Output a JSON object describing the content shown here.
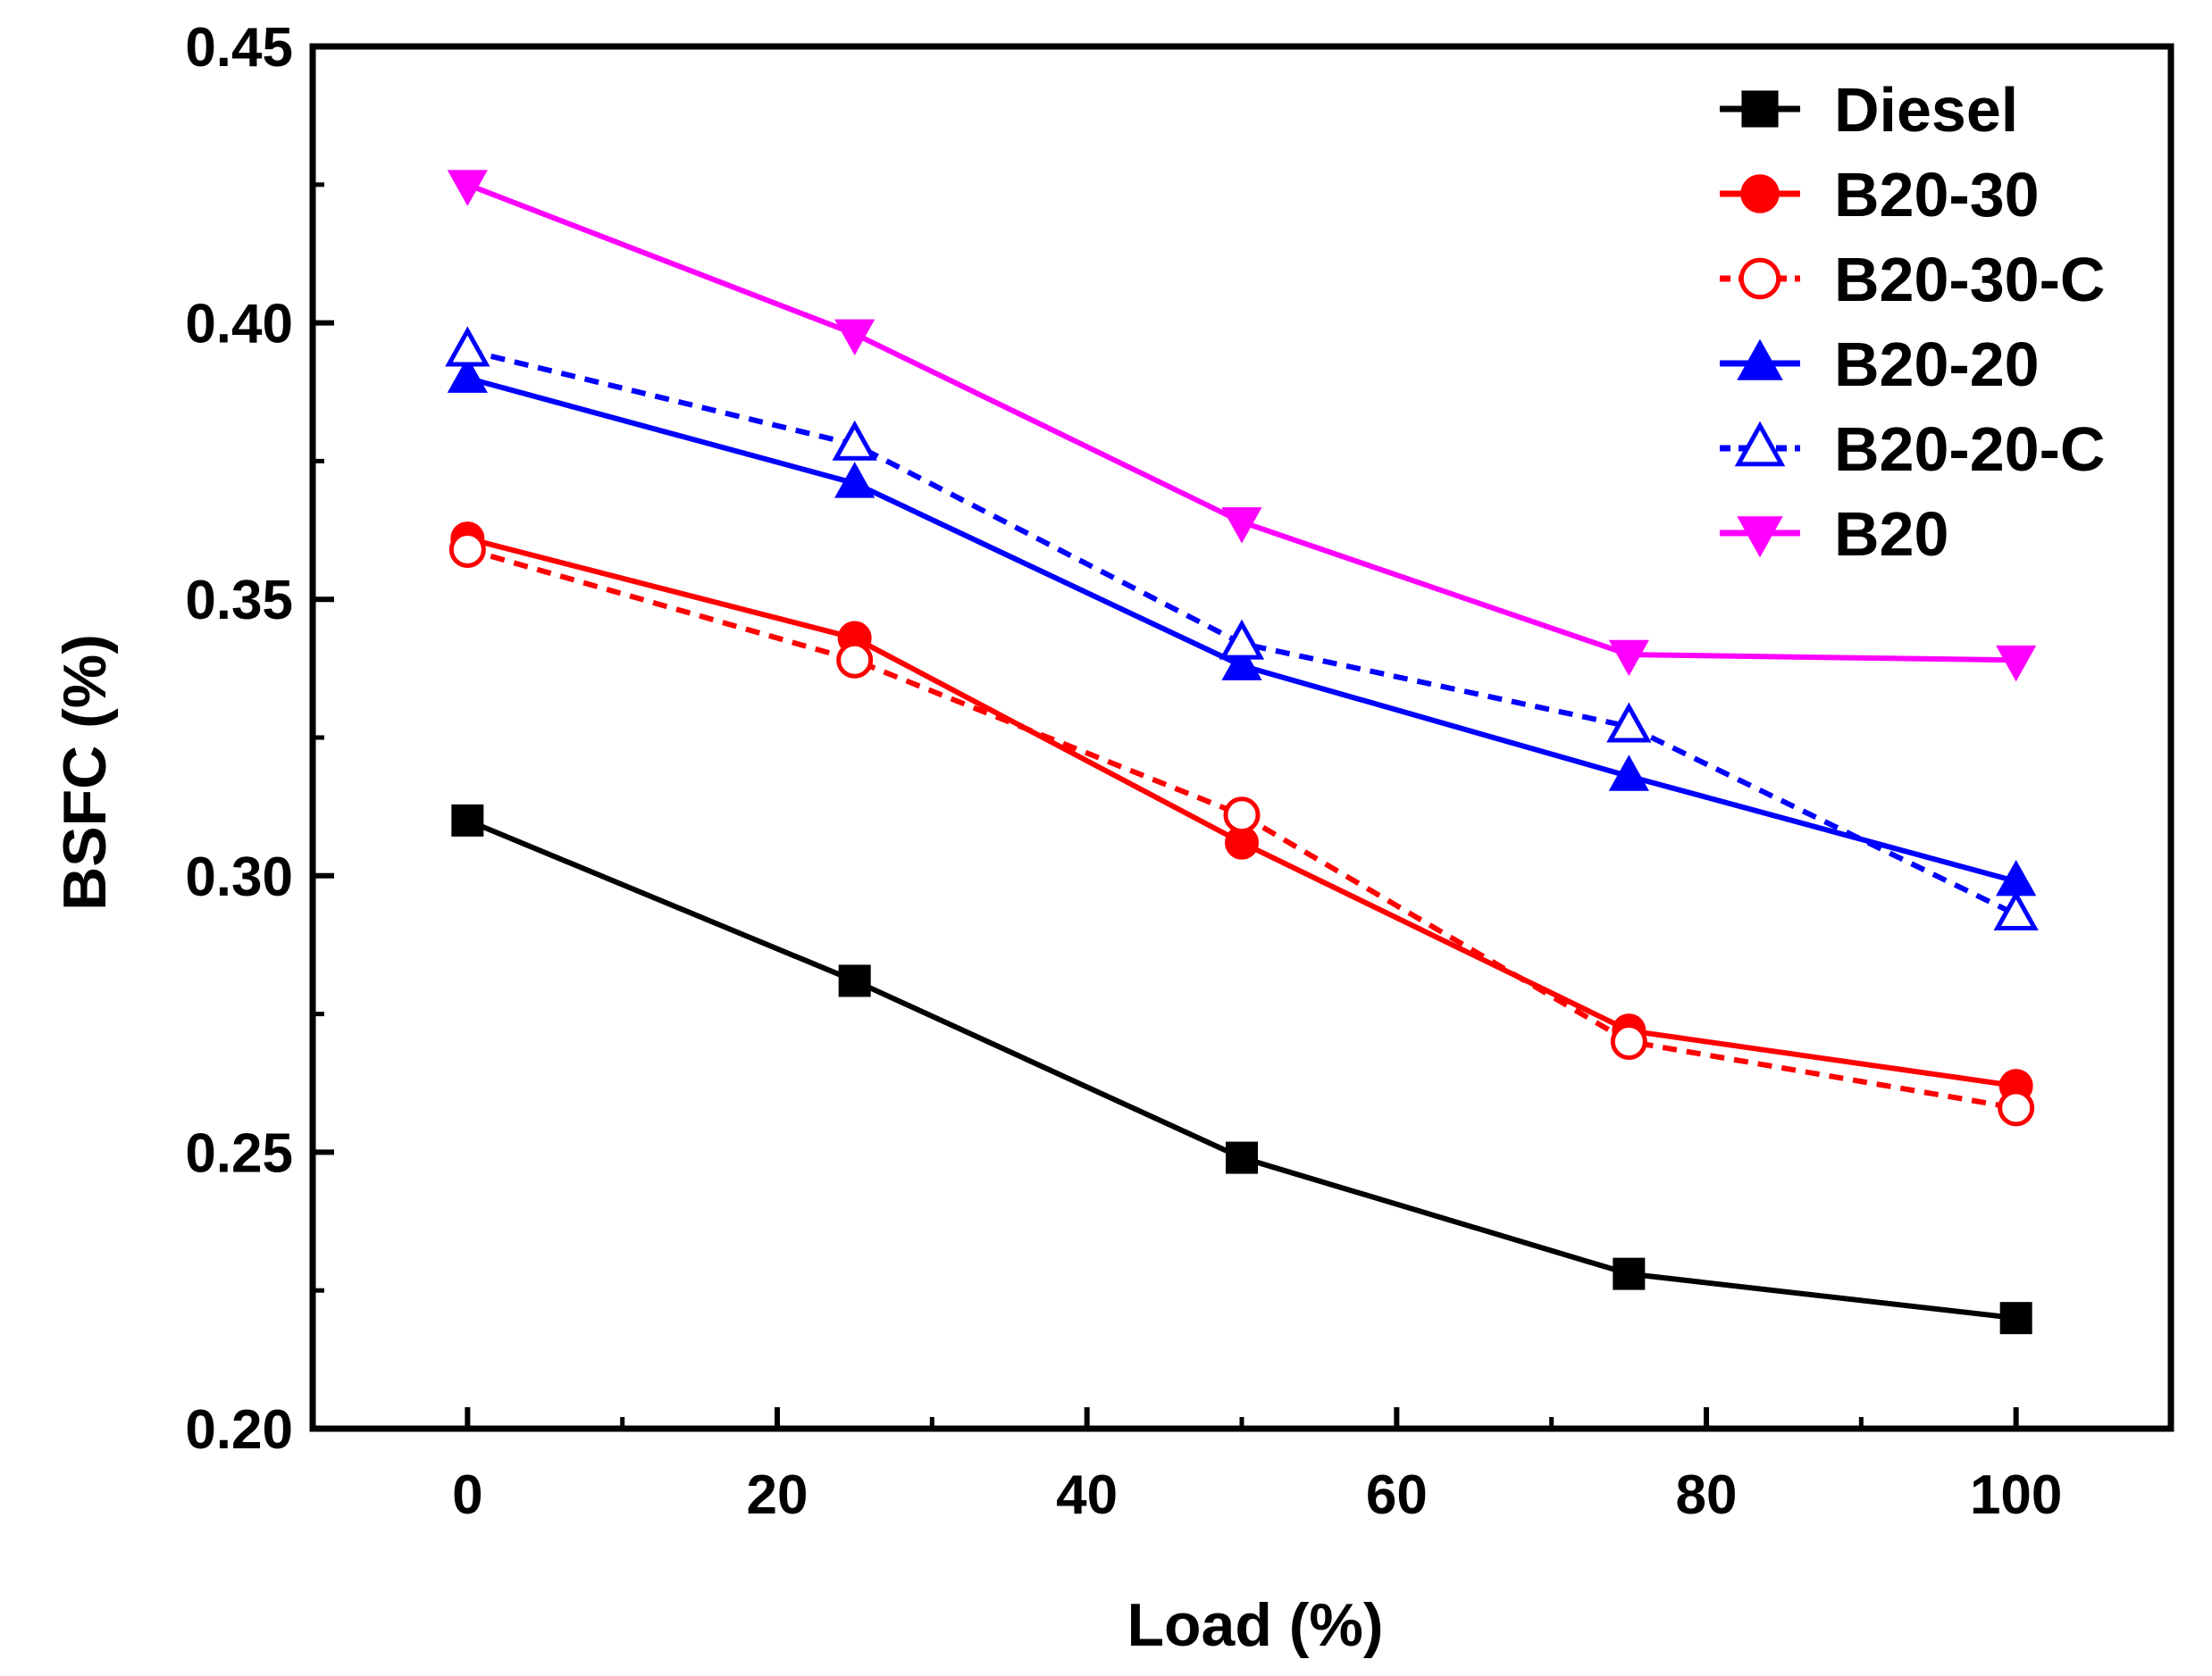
{
  "chart_data": {
    "type": "line",
    "xlabel": "Load (%)",
    "ylabel": "BSFC (%)",
    "xlim": [
      -10,
      110
    ],
    "ylim": [
      0.2,
      0.45
    ],
    "x": [
      0,
      25,
      50,
      75,
      100
    ],
    "xticks": [
      0,
      20,
      40,
      60,
      80,
      100
    ],
    "xtick_labels": [
      "0",
      "20",
      "40",
      "60",
      "80",
      "100"
    ],
    "yticks": [
      0.2,
      0.25,
      0.3,
      0.35,
      0.4,
      0.45
    ],
    "ytick_labels": [
      "0.20",
      "0.25",
      "0.30",
      "0.35",
      "0.40",
      "0.45"
    ],
    "grid": false,
    "legend_position": "top-right",
    "series": [
      {
        "name": "Diesel",
        "values": [
          0.31,
          0.281,
          0.249,
          0.228,
          0.22
        ],
        "color": "#000000",
        "marker": "square",
        "filled": true,
        "dashed": false
      },
      {
        "name": "B20-30",
        "values": [
          0.361,
          0.343,
          0.306,
          0.272,
          0.262
        ],
        "color": "#ff0000",
        "marker": "circle",
        "filled": true,
        "dashed": false
      },
      {
        "name": "B20-30-C",
        "values": [
          0.359,
          0.339,
          0.311,
          0.27,
          0.258
        ],
        "color": "#ff0000",
        "marker": "circle",
        "filled": false,
        "dashed": true
      },
      {
        "name": "B20-20",
        "values": [
          0.39,
          0.371,
          0.338,
          0.318,
          0.299
        ],
        "color": "#0000ff",
        "marker": "triangle-up",
        "filled": true,
        "dashed": false
      },
      {
        "name": "B20-20-C",
        "values": [
          0.395,
          0.378,
          0.342,
          0.327,
          0.293
        ],
        "color": "#0000ff",
        "marker": "triangle-up",
        "filled": false,
        "dashed": true
      },
      {
        "name": "B20",
        "values": [
          0.425,
          0.398,
          0.364,
          0.34,
          0.339
        ],
        "color": "#ff00ff",
        "marker": "triangle-down",
        "filled": true,
        "dashed": false
      }
    ]
  }
}
